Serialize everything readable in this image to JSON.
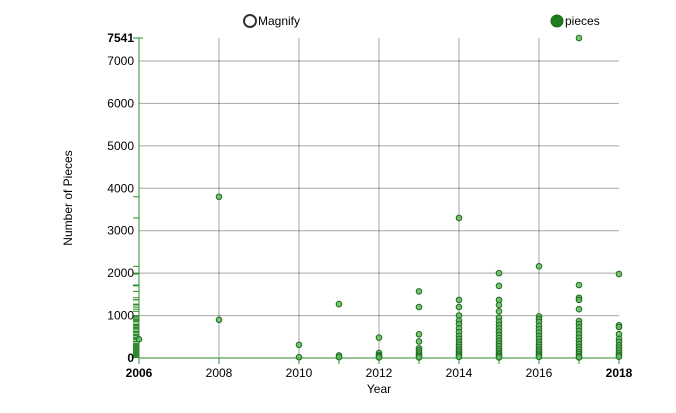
{
  "chart_data": {
    "type": "scatter",
    "xlabel": "Year",
    "ylabel": "Number of Pieces",
    "xlim": [
      2006,
      2018
    ],
    "ylim": [
      0,
      7541
    ],
    "x_ticks": [
      2006,
      2008,
      2010,
      2012,
      2014,
      2016,
      2018
    ],
    "x_ticks_bold": [
      2006,
      2018
    ],
    "y_ticks": [
      0,
      1000,
      2000,
      3000,
      4000,
      5000,
      6000,
      7000
    ],
    "y_max_label": "7541",
    "grid": true,
    "legend": [
      {
        "label": "Magnify",
        "style": "hollow"
      },
      {
        "label": "pieces",
        "style": "filled"
      }
    ],
    "colors": {
      "point_fill": "#5fb85f",
      "point_stroke": "#1e6b1e",
      "rug": "#2e8b2e"
    },
    "series": [
      {
        "name": "pieces",
        "points": [
          [
            2006,
            440
          ],
          [
            2008,
            3800
          ],
          [
            2008,
            900
          ],
          [
            2010,
            310
          ],
          [
            2010,
            20
          ],
          [
            2011,
            1270
          ],
          [
            2011,
            60
          ],
          [
            2011,
            20
          ],
          [
            2012,
            480
          ],
          [
            2012,
            120
          ],
          [
            2012,
            70
          ],
          [
            2012,
            40
          ],
          [
            2012,
            15
          ],
          [
            2013,
            1570
          ],
          [
            2013,
            1200
          ],
          [
            2013,
            560
          ],
          [
            2013,
            390
          ],
          [
            2013,
            230
          ],
          [
            2013,
            180
          ],
          [
            2013,
            130
          ],
          [
            2013,
            80
          ],
          [
            2013,
            40
          ],
          [
            2013,
            15
          ],
          [
            2014,
            3300
          ],
          [
            2014,
            1370
          ],
          [
            2014,
            1200
          ],
          [
            2014,
            1000
          ],
          [
            2014,
            880
          ],
          [
            2014,
            800
          ],
          [
            2014,
            700
          ],
          [
            2014,
            610
          ],
          [
            2014,
            520
          ],
          [
            2014,
            450
          ],
          [
            2014,
            380
          ],
          [
            2014,
            320
          ],
          [
            2014,
            260
          ],
          [
            2014,
            200
          ],
          [
            2014,
            150
          ],
          [
            2014,
            100
          ],
          [
            2014,
            60
          ],
          [
            2014,
            25
          ],
          [
            2015,
            2000
          ],
          [
            2015,
            1700
          ],
          [
            2015,
            1370
          ],
          [
            2015,
            1250
          ],
          [
            2015,
            1100
          ],
          [
            2015,
            950
          ],
          [
            2015,
            860
          ],
          [
            2015,
            780
          ],
          [
            2015,
            700
          ],
          [
            2015,
            620
          ],
          [
            2015,
            540
          ],
          [
            2015,
            470
          ],
          [
            2015,
            400
          ],
          [
            2015,
            340
          ],
          [
            2015,
            280
          ],
          [
            2015,
            220
          ],
          [
            2015,
            170
          ],
          [
            2015,
            120
          ],
          [
            2015,
            80
          ],
          [
            2015,
            40
          ],
          [
            2015,
            15
          ],
          [
            2016,
            2160
          ],
          [
            2016,
            980
          ],
          [
            2016,
            920
          ],
          [
            2016,
            850
          ],
          [
            2016,
            760
          ],
          [
            2016,
            680
          ],
          [
            2016,
            600
          ],
          [
            2016,
            520
          ],
          [
            2016,
            450
          ],
          [
            2016,
            380
          ],
          [
            2016,
            320
          ],
          [
            2016,
            260
          ],
          [
            2016,
            200
          ],
          [
            2016,
            150
          ],
          [
            2016,
            100
          ],
          [
            2016,
            60
          ],
          [
            2016,
            25
          ],
          [
            2017,
            7541
          ],
          [
            2017,
            1720
          ],
          [
            2017,
            1420
          ],
          [
            2017,
            1370
          ],
          [
            2017,
            1150
          ],
          [
            2017,
            870
          ],
          [
            2017,
            800
          ],
          [
            2017,
            720
          ],
          [
            2017,
            640
          ],
          [
            2017,
            560
          ],
          [
            2017,
            480
          ],
          [
            2017,
            400
          ],
          [
            2017,
            330
          ],
          [
            2017,
            260
          ],
          [
            2017,
            200
          ],
          [
            2017,
            140
          ],
          [
            2017,
            90
          ],
          [
            2017,
            40
          ],
          [
            2017,
            15
          ],
          [
            2018,
            1980
          ],
          [
            2018,
            770
          ],
          [
            2018,
            730
          ],
          [
            2018,
            560
          ],
          [
            2018,
            450
          ],
          [
            2018,
            380
          ],
          [
            2018,
            300
          ],
          [
            2018,
            240
          ],
          [
            2018,
            180
          ],
          [
            2018,
            120
          ],
          [
            2018,
            70
          ],
          [
            2018,
            30
          ]
        ]
      }
    ]
  }
}
